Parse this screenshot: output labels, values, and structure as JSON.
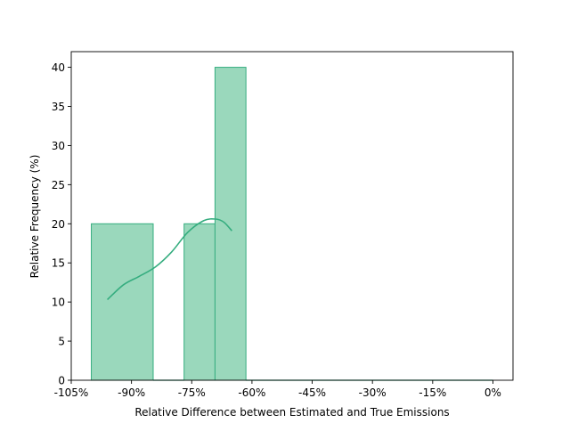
{
  "chart_data": {
    "type": "bar",
    "title": "",
    "xlabel": "Relative Difference between Estimated and True Emissions",
    "ylabel": "Relative Frequency (%)",
    "xlim": [
      -105,
      5
    ],
    "ylim": [
      0,
      42
    ],
    "x_ticks": [
      -105,
      -90,
      -75,
      -60,
      -45,
      -30,
      -15,
      0
    ],
    "x_tick_labels": [
      "-105%",
      "-90%",
      "-75%",
      "-60%",
      "-45%",
      "-30%",
      "-15%",
      "0%"
    ],
    "y_ticks": [
      0,
      5,
      10,
      15,
      20,
      25,
      30,
      35,
      40
    ],
    "y_tick_labels": [
      "0",
      "5",
      "10",
      "15",
      "20",
      "25",
      "30",
      "35",
      "40"
    ],
    "bins": [
      {
        "x0": -100,
        "x1": -84.6,
        "value": 20
      },
      {
        "x0": -84.6,
        "x1": -76.9,
        "value": 0
      },
      {
        "x0": -76.9,
        "x1": -69.2,
        "value": 20
      },
      {
        "x0": -69.2,
        "x1": -61.5,
        "value": 40
      },
      {
        "x0": -61.5,
        "x1": 0,
        "value": 0
      }
    ],
    "kde": {
      "x": [
        -96,
        -92,
        -88,
        -84,
        -80,
        -76,
        -72,
        -69,
        -67,
        -65
      ],
      "y": [
        10.3,
        12.2,
        13.3,
        14.5,
        16.4,
        18.9,
        20.4,
        20.6,
        20.2,
        19.1
      ]
    },
    "grid": false,
    "legend": "none",
    "colors": {
      "bar_fill": "#9ad8bc",
      "bar_edge": "#35ad7f",
      "kde_line": "#35ad7f",
      "axis": "#000000"
    }
  }
}
